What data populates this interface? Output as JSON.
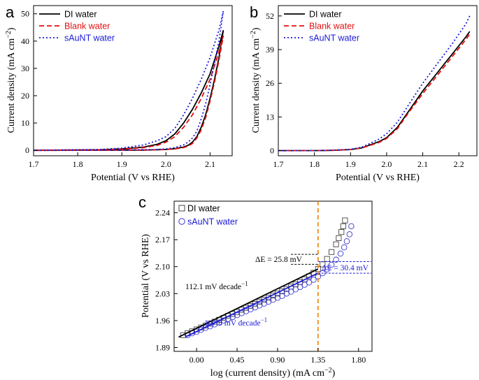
{
  "chart_data": [
    {
      "panel": "a",
      "type": "line",
      "xlabel": "Potential (V vs RHE)",
      "ylabel": "Current density (mA cm",
      "ylabel_sup": "−2",
      "ylabel_tail": ")",
      "xlim": [
        1.7,
        2.15
      ],
      "ylim": [
        -2,
        53
      ],
      "xticks": [
        1.7,
        1.8,
        1.9,
        2.0,
        2.1
      ],
      "xtick_labels": [
        "1.7",
        "1.8",
        "1.9",
        "2.0",
        "2.1"
      ],
      "yticks": [
        0,
        10,
        20,
        30,
        40,
        50
      ],
      "ytick_labels": [
        "0",
        "10",
        "20",
        "30",
        "40",
        "50"
      ],
      "legend": "top-left",
      "series": [
        {
          "name": "DI water",
          "color": "#000000",
          "style": "solid",
          "x": [
            1.7,
            1.85,
            1.9,
            1.95,
            1.98,
            2.0,
            2.02,
            2.04,
            2.06,
            2.08,
            2.1,
            2.12,
            2.13,
            2.12,
            2.11,
            2.1,
            2.09,
            2.08,
            2.07,
            2.06,
            2.05,
            2.04,
            2.02,
            2.0,
            1.98,
            1.95,
            1.9,
            1.85,
            1.7
          ],
          "y": [
            0,
            0.2,
            0.5,
            1.2,
            2.2,
            3.5,
            6.0,
            10.0,
            15.0,
            21.0,
            28.0,
            38.0,
            44.0,
            34.0,
            26.0,
            19.0,
            13.0,
            8.5,
            5.0,
            3.0,
            1.8,
            1.2,
            0.6,
            0.3,
            0.2,
            0.1,
            0.05,
            0.02,
            0
          ]
        },
        {
          "name": "Blank water",
          "color": "#e01010",
          "style": "dash",
          "x": [
            1.7,
            1.85,
            1.9,
            1.95,
            1.98,
            2.0,
            2.02,
            2.04,
            2.06,
            2.08,
            2.1,
            2.12,
            2.13,
            2.12,
            2.11,
            2.1,
            2.09,
            2.08,
            2.07,
            2.06,
            2.05,
            2.04,
            2.02,
            2.0,
            1.98,
            1.95,
            1.9,
            1.85,
            1.7
          ],
          "y": [
            0,
            0.2,
            0.4,
            1.0,
            1.8,
            3.0,
            5.0,
            8.5,
            13.0,
            19.0,
            26.0,
            36.0,
            42.0,
            33.0,
            25.0,
            18.0,
            12.0,
            7.5,
            4.5,
            2.5,
            1.5,
            1.0,
            0.5,
            0.3,
            0.2,
            0.1,
            0.05,
            0.02,
            0
          ]
        },
        {
          "name": "sAuNT water",
          "color": "#1a1adb",
          "style": "dot",
          "x": [
            1.7,
            1.85,
            1.9,
            1.95,
            1.98,
            2.0,
            2.02,
            2.04,
            2.06,
            2.08,
            2.1,
            2.12,
            2.13,
            2.12,
            2.11,
            2.1,
            2.09,
            2.08,
            2.07,
            2.06,
            2.05,
            2.04,
            2.02,
            2.0,
            1.98,
            1.95,
            1.9,
            1.85,
            1.7
          ],
          "y": [
            0,
            0.3,
            0.8,
            2.0,
            3.5,
            5.0,
            8.0,
            13.0,
            19.0,
            26.0,
            34.0,
            44.0,
            51.0,
            40.0,
            32.0,
            24.0,
            17.0,
            11.5,
            7.0,
            4.5,
            3.0,
            2.0,
            1.0,
            0.5,
            0.3,
            0.2,
            0.1,
            0.05,
            0
          ]
        }
      ]
    },
    {
      "panel": "b",
      "type": "line",
      "xlabel": "Potential (V vs RHE)",
      "ylabel": "Current density (mA cm",
      "ylabel_sup": "−2",
      "ylabel_tail": ")",
      "xlim": [
        1.7,
        2.25
      ],
      "ylim": [
        -2,
        56
      ],
      "xticks": [
        1.7,
        1.8,
        1.9,
        2.0,
        2.1,
        2.2
      ],
      "xtick_labels": [
        "1.7",
        "1.8",
        "1.9",
        "2.0",
        "2.1",
        "2.2"
      ],
      "yticks": [
        0,
        13,
        26,
        39,
        52
      ],
      "ytick_labels": [
        "0",
        "13",
        "26",
        "39",
        "52"
      ],
      "legend": "top-left",
      "series": [
        {
          "name": "DI water",
          "color": "#000000",
          "style": "solid",
          "x": [
            1.7,
            1.8,
            1.85,
            1.9,
            1.93,
            1.95,
            1.98,
            2.0,
            2.03,
            2.06,
            2.1,
            2.14,
            2.18,
            2.22,
            2.23
          ],
          "y": [
            0,
            0,
            0.1,
            0.4,
            1.0,
            2.0,
            3.5,
            5.0,
            9.0,
            15.0,
            23.0,
            30.0,
            37.0,
            44.0,
            46.0
          ]
        },
        {
          "name": "Blank water",
          "color": "#e01010",
          "style": "dash",
          "x": [
            1.7,
            1.8,
            1.85,
            1.9,
            1.93,
            1.95,
            1.98,
            2.0,
            2.03,
            2.06,
            2.1,
            2.14,
            2.18,
            2.22,
            2.23
          ],
          "y": [
            0,
            0,
            0.1,
            0.4,
            1.0,
            1.8,
            3.2,
            4.7,
            8.5,
            14.5,
            22.0,
            29.0,
            36.0,
            43.0,
            45.0
          ]
        },
        {
          "name": "sAuNT water",
          "color": "#1a1adb",
          "style": "dot",
          "x": [
            1.7,
            1.8,
            1.85,
            1.9,
            1.93,
            1.95,
            1.98,
            2.0,
            2.03,
            2.06,
            2.1,
            2.14,
            2.18,
            2.22,
            2.23
          ],
          "y": [
            0,
            0,
            0.1,
            0.5,
            1.3,
            2.5,
            4.5,
            6.5,
            11.0,
            17.5,
            26.0,
            33.5,
            41.0,
            49.0,
            52.0
          ]
        }
      ]
    },
    {
      "panel": "c",
      "type": "scatter",
      "xlabel": "log (current density) (mA cm",
      "xlabel_sup": "−2",
      "xlabel_tail": ")",
      "ylabel": "Potential (V vs RHE)",
      "xlim": [
        -0.25,
        1.95
      ],
      "ylim": [
        1.88,
        2.27
      ],
      "xticks": [
        0.0,
        0.45,
        0.9,
        1.35,
        1.8
      ],
      "xtick_labels": [
        "0.00",
        "0.45",
        "0.90",
        "1.35",
        "1.80"
      ],
      "yticks": [
        1.89,
        1.96,
        2.03,
        2.1,
        2.17,
        2.24
      ],
      "ytick_labels": [
        "1.89",
        "1.96",
        "2.03",
        "2.10",
        "2.17",
        "2.24"
      ],
      "legend": "top-left",
      "vline_x": 1.35,
      "series": [
        {
          "name": "DI water",
          "color": "#444444",
          "marker": "square",
          "x": [
            -0.15,
            -0.1,
            -0.05,
            0.0,
            0.05,
            0.1,
            0.15,
            0.2,
            0.25,
            0.3,
            0.35,
            0.4,
            0.45,
            0.5,
            0.55,
            0.6,
            0.65,
            0.7,
            0.75,
            0.8,
            0.85,
            0.9,
            0.95,
            1.0,
            1.05,
            1.1,
            1.15,
            1.2,
            1.25,
            1.3,
            1.35,
            1.4,
            1.45,
            1.5,
            1.55,
            1.58,
            1.61,
            1.63,
            1.65
          ],
          "y": [
            1.922,
            1.927,
            1.932,
            1.937,
            1.942,
            1.947,
            1.952,
            1.957,
            1.962,
            1.967,
            1.972,
            1.977,
            1.982,
            1.988,
            1.993,
            1.998,
            2.003,
            2.009,
            2.014,
            2.019,
            2.025,
            2.03,
            2.036,
            2.042,
            2.048,
            2.054,
            2.06,
            2.067,
            2.075,
            2.084,
            2.094,
            2.106,
            2.12,
            2.138,
            2.158,
            2.174,
            2.19,
            2.205,
            2.22
          ]
        },
        {
          "name": "sAuNT water",
          "color": "#3a3ad0",
          "marker": "circle",
          "x": [
            -0.1,
            -0.05,
            0.0,
            0.05,
            0.1,
            0.15,
            0.2,
            0.25,
            0.3,
            0.35,
            0.4,
            0.45,
            0.5,
            0.55,
            0.6,
            0.65,
            0.7,
            0.75,
            0.8,
            0.85,
            0.9,
            0.95,
            1.0,
            1.05,
            1.1,
            1.15,
            1.2,
            1.25,
            1.3,
            1.35,
            1.4,
            1.45,
            1.5,
            1.55,
            1.6,
            1.64,
            1.67,
            1.7,
            1.72
          ],
          "y": [
            1.922,
            1.927,
            1.931,
            1.936,
            1.941,
            1.945,
            1.95,
            1.955,
            1.96,
            1.964,
            1.969,
            1.974,
            1.979,
            1.984,
            1.989,
            1.994,
            1.999,
            2.004,
            2.009,
            2.014,
            2.019,
            2.024,
            2.03,
            2.035,
            2.041,
            2.047,
            2.053,
            2.059,
            2.066,
            2.074,
            2.083,
            2.093,
            2.105,
            2.118,
            2.134,
            2.15,
            2.166,
            2.184,
            2.205
          ]
        }
      ],
      "fits": [
        {
          "name": "DI water fit",
          "color": "#000000",
          "x": [
            -0.2,
            1.35
          ],
          "y": [
            1.917,
            2.094
          ],
          "label": "112.1 mV decade",
          "label_sup": "−1"
        },
        {
          "name": "sAuNT water fit",
          "color": "#1a1adb",
          "x": [
            -0.12,
            1.35
          ],
          "y": [
            1.918,
            2.083
          ],
          "label": "107.8 mV decade",
          "label_sup": "−1"
        }
      ],
      "annotations": [
        {
          "text": "ΔE = 25.8 mV",
          "color": "#000000",
          "y_top": 2.132,
          "y_bottom": 2.106
        },
        {
          "text": "ΔE = 30.4 mV",
          "color": "#1a1adb",
          "y_top": 2.113,
          "y_bottom": 2.083
        }
      ]
    }
  ]
}
